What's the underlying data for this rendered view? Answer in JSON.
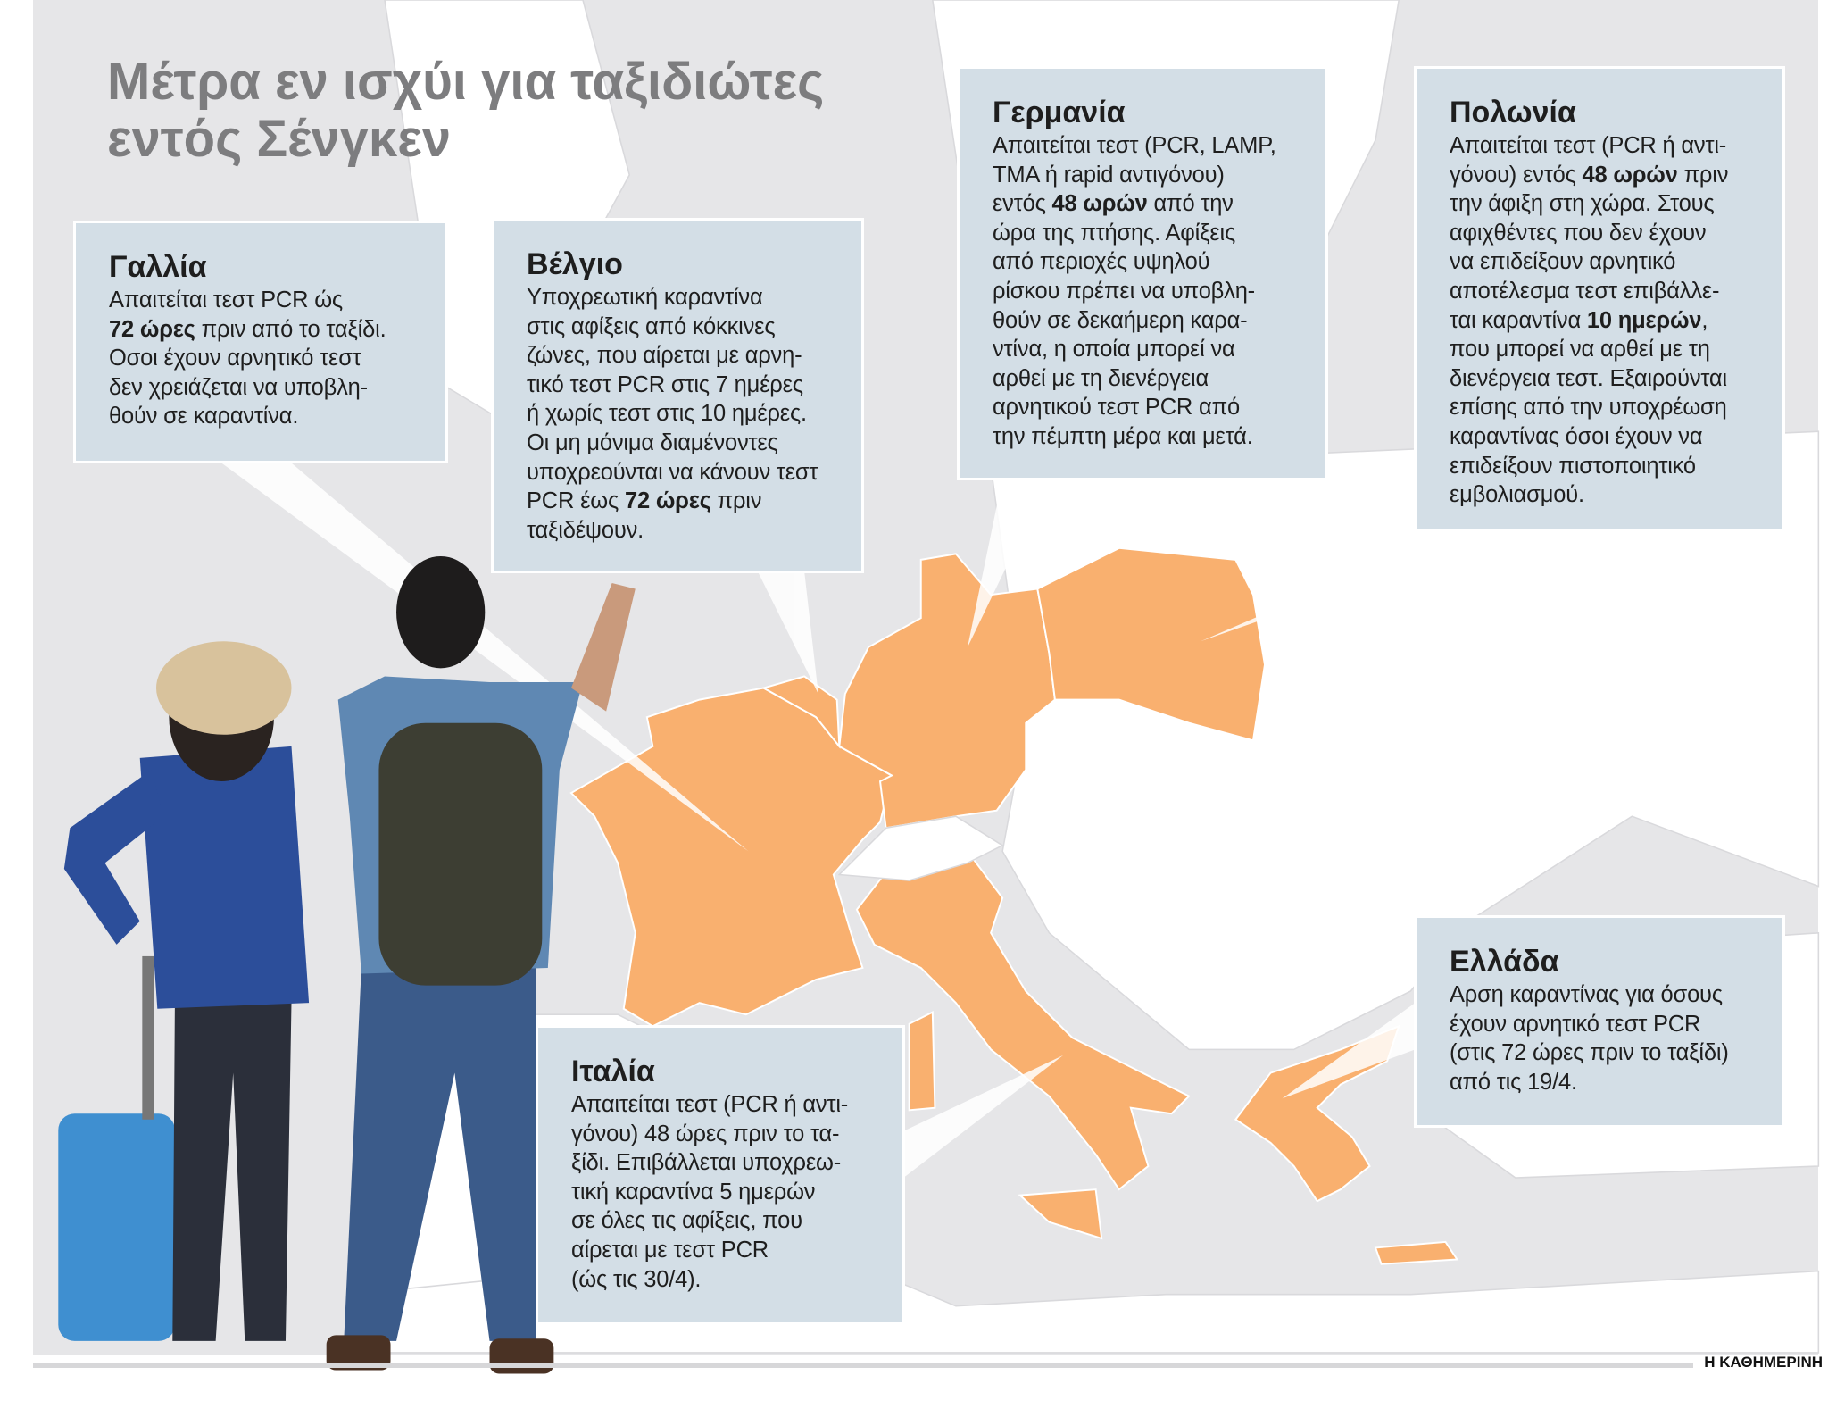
{
  "title": [
    "Μέτρα εν ισχύι για ταξιδιώτες",
    "εντός Σένγκεν"
  ],
  "colors": {
    "schengen_highlight": "#f9b06f",
    "callout_fill": "#d3dee6",
    "sea": "#e6e6e8",
    "land": "#ffffff",
    "title": "#7d7d7f"
  },
  "countries": [
    {
      "id": "france",
      "heading": "Γαλλία",
      "lines": [
        "Απαιτείται τεστ PCR ώς",
        [
          {
            "t": "72 ώρες",
            "b": true
          },
          {
            "t": " πριν από το ταξίδι."
          }
        ],
        "Οσοι έχουν αρνητικό τεστ",
        "δεν χρειάζεται να υποβλη-",
        "θούν σε καραντίνα."
      ]
    },
    {
      "id": "belgium",
      "heading": "Βέλγιο",
      "lines": [
        "Υποχρεωτική καραντίνα",
        "στις αφίξεις από κόκκινες",
        "ζώνες, που αίρεται με αρνη-",
        "τικό τεστ PCR στις 7 ημέρες",
        "ή χωρίς τεστ στις 10 ημέρες.",
        "Οι μη μόνιμα διαμένοντες",
        "υποχρεούνται να κάνουν τεστ",
        [
          {
            "t": "PCR έως "
          },
          {
            "t": "72 ώρες",
            "b": true
          },
          {
            "t": " πριν"
          }
        ],
        "ταξιδέψουν."
      ]
    },
    {
      "id": "germany",
      "heading": "Γερμανία",
      "lines": [
        "Απαιτείται τεστ (PCR, LAMP,",
        "TMA ή rapid αντιγόνου)",
        [
          {
            "t": "εντός "
          },
          {
            "t": "48 ωρών",
            "b": true
          },
          {
            "t": " από την"
          }
        ],
        "ώρα της πτήσης. Αφίξεις",
        "από περιοχές υψηλού",
        "ρίσκου πρέπει να υποβλη-",
        "θούν σε δεκαήμερη καρα-",
        "ντίνα, η οποία μπορεί να",
        "αρθεί με τη διενέργεια",
        "αρνητικού τεστ PCR από",
        "την πέμπτη μέρα και μετά."
      ]
    },
    {
      "id": "poland",
      "heading": "Πολωνία",
      "lines": [
        "Απαιτείται τεστ (PCR ή αντι-",
        [
          {
            "t": "γόνου) εντός "
          },
          {
            "t": "48 ωρών",
            "b": true
          },
          {
            "t": " πριν"
          }
        ],
        "την άφιξη στη χώρα. Στους",
        "αφιχθέντες που δεν έχουν",
        "να επιδείξουν αρνητικό",
        "αποτέλεσμα τεστ επιβάλλε-",
        [
          {
            "t": "ται καραντίνα "
          },
          {
            "t": "10 ημερών",
            "b": true
          },
          {
            "t": ","
          }
        ],
        "που μπορεί να αρθεί με τη",
        "διενέργεια τεστ. Εξαιρούνται",
        "επίσης από την υποχρέωση",
        "καραντίνας όσοι έχουν να",
        "επιδείξουν πιστοποιητικό",
        "εμβολιασμού."
      ]
    },
    {
      "id": "greece",
      "heading": "Ελλάδα",
      "lines": [
        "Αρση καραντίνας για όσους",
        "έχουν αρνητικό τεστ PCR",
        "(στις 72 ώρες πριν το ταξίδι)",
        "από τις 19/4."
      ]
    },
    {
      "id": "italy",
      "heading": "Ιταλία",
      "lines": [
        "Απαιτείται τεστ (PCR ή αντι-",
        "γόνου) 48 ώρες πριν το τα-",
        "ξίδι. Επιβάλλεται υποχρεω-",
        "τική καραντίνα 5 ημερών",
        "σε όλες τις αφίξεις, που",
        "αίρεται με τεστ PCR",
        "(ώς τις 30/4)."
      ]
    }
  ],
  "credit": "Η ΚΑΘΗΜΕΡΙΝΗ"
}
